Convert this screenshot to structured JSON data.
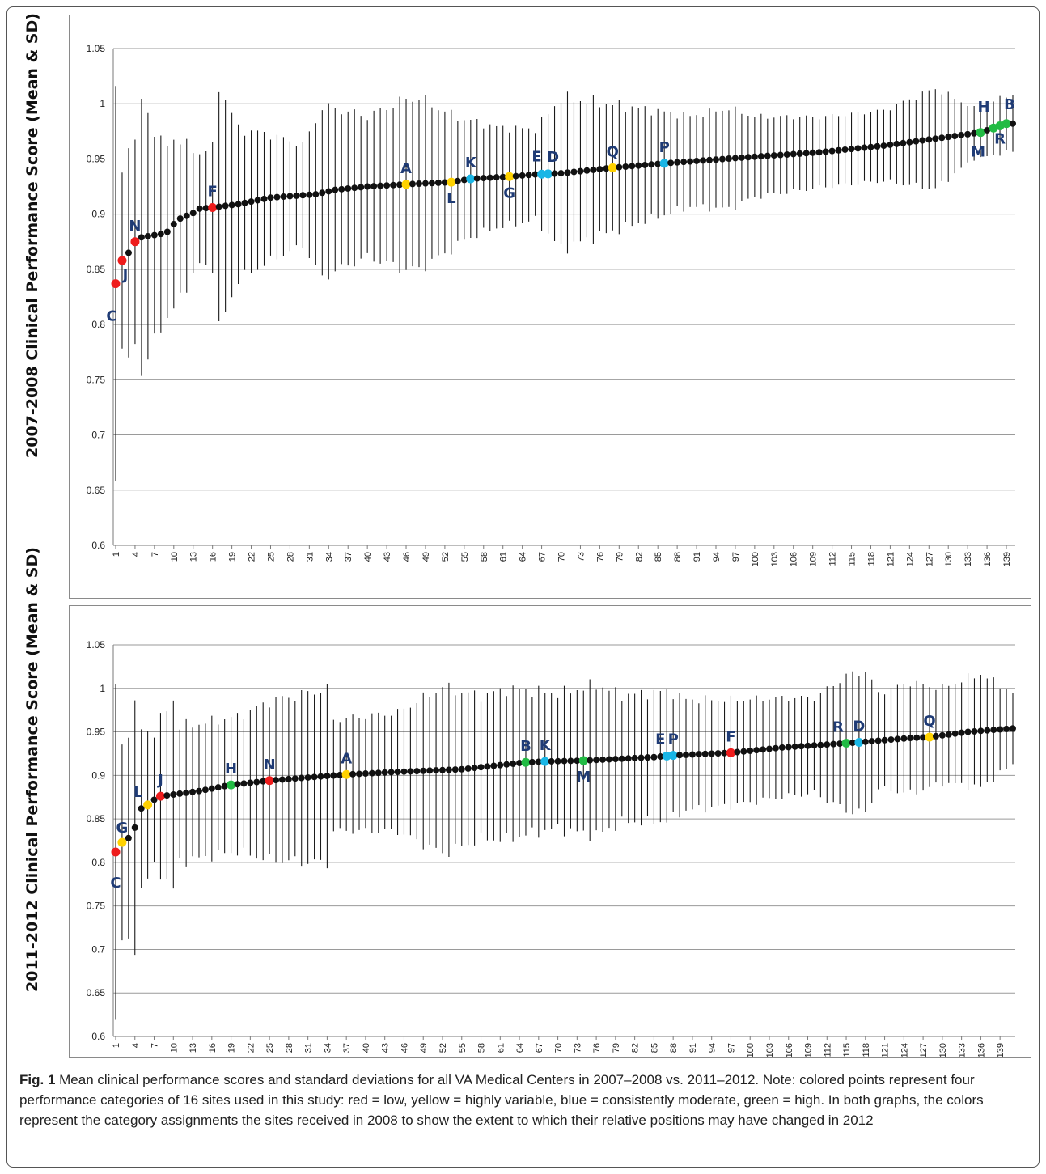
{
  "caption": {
    "label": "Fig. 1",
    "text": "Mean clinical performance scores and standard deviations for all VA Medical Centers in 2007–2008 vs. 2011–2012. Note: colored points represent four performance categories of 16 sites used in this study: red = low, yellow = highly variable, blue = consistently moderate, green = high. In both graphs, the colors represent the category assignments the sites received in 2008 to show the extent to which their relative positions may have changed in 2012"
  },
  "colors": {
    "low": "#ee1c1c",
    "variable": "#ffd200",
    "moderate": "#19b6e6",
    "high": "#22bb44",
    "default": "#111111",
    "label": "#1f3b75"
  },
  "chart_data": [
    {
      "type": "scatter",
      "title": "",
      "xlabel": "",
      "ylabel": "2007-2008 Clinical Performance Score (Mean & SD)",
      "ylim": [
        0.6,
        1.05
      ],
      "xlim": [
        1,
        140
      ],
      "yticks": [
        "0.6",
        "0.65",
        "0.7",
        "0.75",
        "0.8",
        "0.85",
        "0.9",
        "0.95",
        "1",
        "1.05"
      ],
      "xticks": [
        1,
        4,
        7,
        10,
        13,
        16,
        19,
        22,
        25,
        28,
        31,
        34,
        37,
        40,
        43,
        46,
        49,
        52,
        55,
        58,
        61,
        64,
        67,
        70,
        73,
        76,
        79,
        82,
        85,
        88,
        91,
        94,
        97,
        100,
        103,
        106,
        109,
        112,
        115,
        118,
        121,
        124,
        127,
        130,
        133,
        136,
        139
      ],
      "grid": true,
      "error_bars": "SD",
      "mean_anchors": [
        [
          1,
          0.837
        ],
        [
          2,
          0.858
        ],
        [
          3,
          0.865
        ],
        [
          4,
          0.875
        ],
        [
          5,
          0.879
        ],
        [
          8,
          0.882
        ],
        [
          9,
          0.884
        ],
        [
          10,
          0.891
        ],
        [
          11,
          0.896
        ],
        [
          13,
          0.901
        ],
        [
          14,
          0.905
        ],
        [
          16,
          0.906
        ],
        [
          20,
          0.909
        ],
        [
          25,
          0.915
        ],
        [
          32,
          0.918
        ],
        [
          35,
          0.922
        ],
        [
          40,
          0.925
        ],
        [
          46,
          0.927
        ],
        [
          53,
          0.929
        ],
        [
          56,
          0.932
        ],
        [
          62,
          0.934
        ],
        [
          66,
          0.936
        ],
        [
          70,
          0.937
        ],
        [
          78,
          0.942
        ],
        [
          86,
          0.946
        ],
        [
          100,
          0.952
        ],
        [
          110,
          0.956
        ],
        [
          120,
          0.962
        ],
        [
          130,
          0.97
        ],
        [
          135,
          0.974
        ],
        [
          136,
          0.976
        ],
        [
          137,
          0.978
        ],
        [
          138,
          0.98
        ],
        [
          139,
          0.982
        ]
      ],
      "sd_anchors": [
        [
          1,
          0.195
        ],
        [
          2,
          0.085
        ],
        [
          3,
          0.115
        ],
        [
          4,
          0.095
        ],
        [
          5,
          0.138
        ],
        [
          8,
          0.09
        ],
        [
          10,
          0.085
        ],
        [
          14,
          0.055
        ],
        [
          16,
          0.06
        ],
        [
          17,
          0.122
        ],
        [
          20,
          0.075
        ],
        [
          30,
          0.05
        ],
        [
          33,
          0.085
        ],
        [
          40,
          0.07
        ],
        [
          46,
          0.085
        ],
        [
          48,
          0.085
        ],
        [
          55,
          0.06
        ],
        [
          60,
          0.05
        ],
        [
          66,
          0.045
        ],
        [
          70,
          0.075
        ],
        [
          80,
          0.06
        ],
        [
          90,
          0.045
        ],
        [
          96,
          0.05
        ],
        [
          100,
          0.04
        ],
        [
          110,
          0.035
        ],
        [
          120,
          0.035
        ],
        [
          128,
          0.05
        ],
        [
          134,
          0.025
        ],
        [
          139,
          0.028
        ]
      ],
      "highlighted_sites": [
        {
          "label": "C",
          "x": 1,
          "y": 0.837,
          "category": "low"
        },
        {
          "label": "J",
          "x": 2,
          "y": 0.858,
          "category": "low"
        },
        {
          "label": "N",
          "x": 4,
          "y": 0.875,
          "category": "low"
        },
        {
          "label": "F",
          "x": 16,
          "y": 0.906,
          "category": "low"
        },
        {
          "label": "A",
          "x": 46,
          "y": 0.927,
          "category": "variable"
        },
        {
          "label": "L",
          "x": 53,
          "y": 0.929,
          "category": "variable"
        },
        {
          "label": "G",
          "x": 62,
          "y": 0.934,
          "category": "variable"
        },
        {
          "label": "Q",
          "x": 78,
          "y": 0.942,
          "category": "variable"
        },
        {
          "label": "K",
          "x": 56,
          "y": 0.932,
          "category": "moderate"
        },
        {
          "label": "E",
          "x": 67,
          "y": 0.936,
          "category": "moderate"
        },
        {
          "label": "D",
          "x": 68,
          "y": 0.937,
          "category": "moderate"
        },
        {
          "label": "P",
          "x": 86,
          "y": 0.946,
          "category": "moderate"
        },
        {
          "label": "M",
          "x": 135,
          "y": 0.974,
          "category": "high"
        },
        {
          "label": "H",
          "x": 137,
          "y": 0.978,
          "category": "high"
        },
        {
          "label": "R",
          "x": 138,
          "y": 0.98,
          "category": "high"
        },
        {
          "label": "B",
          "x": 139,
          "y": 0.982,
          "category": "high"
        }
      ]
    },
    {
      "type": "scatter",
      "title": "",
      "xlabel": "",
      "ylabel": "2011-2012 Clinical Performance Score (Mean & SD)",
      "ylim": [
        0.6,
        1.05
      ],
      "xlim": [
        1,
        141
      ],
      "yticks": [
        "0.6",
        "0.65",
        "0.7",
        "0.75",
        "0.8",
        "0.85",
        "0.9",
        "0.95",
        "1",
        "1.05"
      ],
      "xticks": [
        1,
        4,
        7,
        10,
        13,
        16,
        19,
        22,
        25,
        28,
        31,
        34,
        37,
        40,
        43,
        46,
        49,
        52,
        55,
        58,
        61,
        64,
        67,
        70,
        73,
        76,
        79,
        82,
        85,
        88,
        91,
        94,
        97,
        100,
        103,
        106,
        109,
        112,
        115,
        118,
        121,
        124,
        127,
        130,
        133,
        136,
        139
      ],
      "grid": true,
      "error_bars": "SD",
      "mean_anchors": [
        [
          1,
          0.812
        ],
        [
          2,
          0.823
        ],
        [
          3,
          0.828
        ],
        [
          4,
          0.84
        ],
        [
          5,
          0.862
        ],
        [
          6,
          0.866
        ],
        [
          7,
          0.872
        ],
        [
          8,
          0.876
        ],
        [
          10,
          0.878
        ],
        [
          14,
          0.882
        ],
        [
          19,
          0.889
        ],
        [
          25,
          0.894
        ],
        [
          30,
          0.897
        ],
        [
          37,
          0.901
        ],
        [
          45,
          0.904
        ],
        [
          55,
          0.907
        ],
        [
          65,
          0.915
        ],
        [
          68,
          0.916
        ],
        [
          74,
          0.917
        ],
        [
          85,
          0.921
        ],
        [
          88,
          0.923
        ],
        [
          97,
          0.926
        ],
        [
          105,
          0.932
        ],
        [
          115,
          0.937
        ],
        [
          117,
          0.938
        ],
        [
          125,
          0.943
        ],
        [
          128,
          0.944
        ],
        [
          134,
          0.95
        ],
        [
          141,
          0.954
        ]
      ],
      "sd_anchors": [
        [
          1,
          0.21
        ],
        [
          2,
          0.12
        ],
        [
          3,
          0.14
        ],
        [
          4,
          0.15
        ],
        [
          5,
          0.1
        ],
        [
          7,
          0.085
        ],
        [
          10,
          0.12
        ],
        [
          11,
          0.085
        ],
        [
          20,
          0.085
        ],
        [
          25,
          0.1
        ],
        [
          34,
          0.11
        ],
        [
          35,
          0.07
        ],
        [
          45,
          0.075
        ],
        [
          52,
          0.105
        ],
        [
          58,
          0.09
        ],
        [
          62,
          0.095
        ],
        [
          70,
          0.085
        ],
        [
          76,
          0.095
        ],
        [
          80,
          0.08
        ],
        [
          87,
          0.082
        ],
        [
          90,
          0.07
        ],
        [
          100,
          0.065
        ],
        [
          110,
          0.06
        ],
        [
          115,
          0.085
        ],
        [
          118,
          0.09
        ],
        [
          120,
          0.06
        ],
        [
          125,
          0.07
        ],
        [
          130,
          0.06
        ],
        [
          136,
          0.072
        ],
        [
          141,
          0.045
        ]
      ],
      "highlighted_sites": [
        {
          "label": "C",
          "x": 1,
          "y": 0.812,
          "category": "low"
        },
        {
          "label": "G",
          "x": 2,
          "y": 0.823,
          "category": "variable"
        },
        {
          "label": "L",
          "x": 6,
          "y": 0.866,
          "category": "variable"
        },
        {
          "label": "J",
          "x": 8,
          "y": 0.876,
          "category": "low"
        },
        {
          "label": "H",
          "x": 19,
          "y": 0.889,
          "category": "high"
        },
        {
          "label": "N",
          "x": 25,
          "y": 0.894,
          "category": "low"
        },
        {
          "label": "A",
          "x": 37,
          "y": 0.901,
          "category": "variable"
        },
        {
          "label": "B",
          "x": 65,
          "y": 0.915,
          "category": "high"
        },
        {
          "label": "K",
          "x": 68,
          "y": 0.916,
          "category": "moderate"
        },
        {
          "label": "M",
          "x": 74,
          "y": 0.917,
          "category": "high"
        },
        {
          "label": "E",
          "x": 87,
          "y": 0.923,
          "category": "moderate"
        },
        {
          "label": "P",
          "x": 88,
          "y": 0.923,
          "category": "moderate"
        },
        {
          "label": "F",
          "x": 97,
          "y": 0.926,
          "category": "low"
        },
        {
          "label": "R",
          "x": 115,
          "y": 0.937,
          "category": "high"
        },
        {
          "label": "D",
          "x": 117,
          "y": 0.938,
          "category": "moderate"
        },
        {
          "label": "Q",
          "x": 128,
          "y": 0.944,
          "category": "variable"
        }
      ]
    }
  ]
}
